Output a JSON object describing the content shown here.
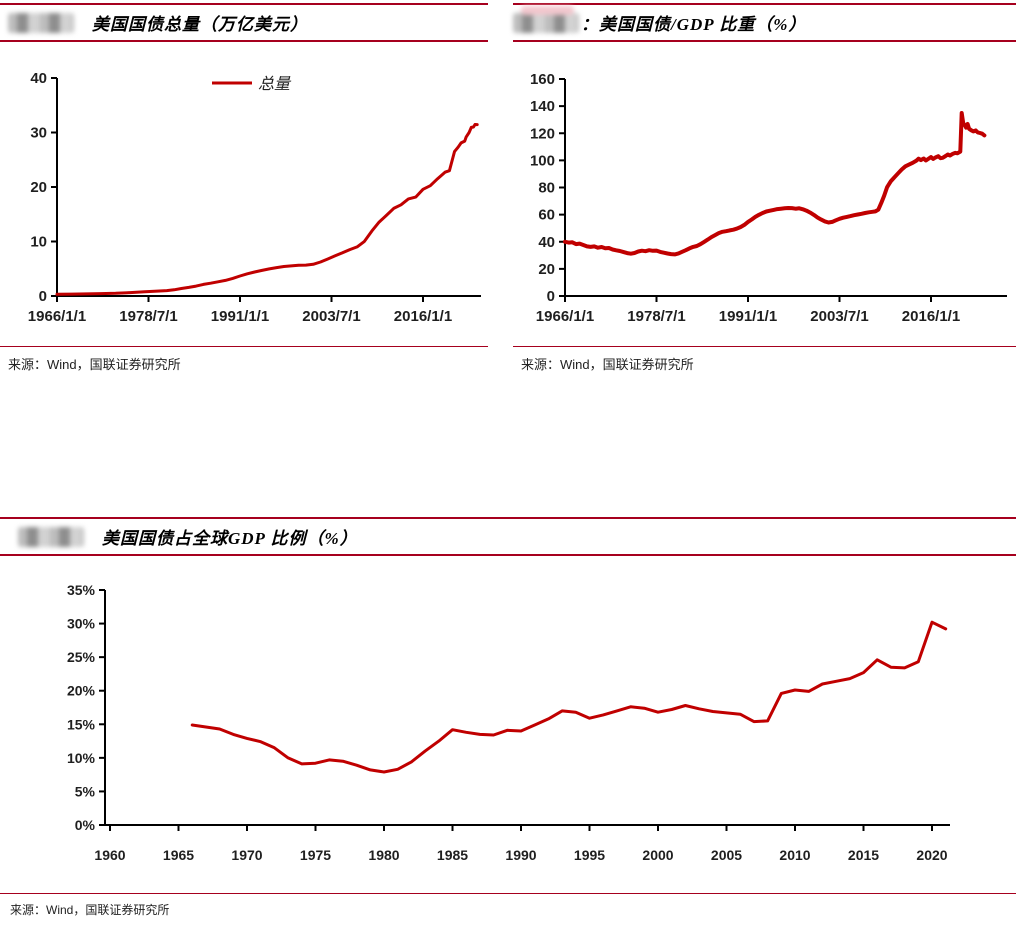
{
  "colors": {
    "rule": "#A6001E",
    "line": "#C00000",
    "axis": "#000000",
    "tick_label": "#1f1f1f",
    "legend_text": "#222222"
  },
  "chart_data": [
    {
      "type": "line",
      "title": "美国国债总量（万亿美元）",
      "source": "来源：Wind，国联证券研究所",
      "legend": [
        "总量"
      ],
      "legend_position": "top-center",
      "grid": false,
      "ylabel": "",
      "xlabel": "",
      "ylim": [
        0,
        40
      ],
      "ytick_values": [
        0,
        10,
        20,
        30,
        40
      ],
      "ytick_labels": [
        "0",
        "10",
        "20",
        "30",
        "40"
      ],
      "xtick_values": [
        1966,
        1978.5,
        1991,
        2003.5,
        2016
      ],
      "xtick_labels": [
        "1966/1/1",
        "1978/7/1",
        "1991/1/1",
        "2003/7/1",
        "2016/1/1"
      ],
      "series": [
        {
          "name": "总量",
          "color": "#C00000",
          "points": [
            [
              1966,
              0.32
            ],
            [
              1968,
              0.35
            ],
            [
              1970,
              0.38
            ],
            [
              1972,
              0.44
            ],
            [
              1974,
              0.49
            ],
            [
              1976,
              0.63
            ],
            [
              1978,
              0.78
            ],
            [
              1980,
              0.91
            ],
            [
              1981,
              1.0
            ],
            [
              1982,
              1.14
            ],
            [
              1983,
              1.38
            ],
            [
              1984,
              1.57
            ],
            [
              1985,
              1.82
            ],
            [
              1986,
              2.13
            ],
            [
              1987,
              2.35
            ],
            [
              1988,
              2.6
            ],
            [
              1989,
              2.87
            ],
            [
              1990,
              3.23
            ],
            [
              1991,
              3.67
            ],
            [
              1992,
              4.07
            ],
            [
              1993,
              4.41
            ],
            [
              1994,
              4.69
            ],
            [
              1995,
              4.97
            ],
            [
              1996,
              5.22
            ],
            [
              1997,
              5.41
            ],
            [
              1998,
              5.53
            ],
            [
              1999,
              5.66
            ],
            [
              2000,
              5.67
            ],
            [
              2001,
              5.81
            ],
            [
              2002,
              6.23
            ],
            [
              2003,
              6.78
            ],
            [
              2004,
              7.38
            ],
            [
              2005,
              7.93
            ],
            [
              2006,
              8.51
            ],
            [
              2007,
              9.01
            ],
            [
              2008,
              10.02
            ],
            [
              2009,
              11.91
            ],
            [
              2010,
              13.56
            ],
            [
              2011,
              14.79
            ],
            [
              2012,
              16.07
            ],
            [
              2013,
              16.74
            ],
            [
              2014,
              17.82
            ],
            [
              2015,
              18.15
            ],
            [
              2016,
              19.57
            ],
            [
              2017,
              20.24
            ],
            [
              2018,
              21.52
            ],
            [
              2019,
              22.72
            ],
            [
              2019.6,
              23.0
            ],
            [
              2020.3,
              26.5
            ],
            [
              2020.8,
              27.3
            ],
            [
              2021.2,
              28.1
            ],
            [
              2021.7,
              28.43
            ],
            [
              2021.9,
              29.2
            ],
            [
              2022.3,
              30.0
            ],
            [
              2022.6,
              30.93
            ],
            [
              2022.9,
              31.0
            ],
            [
              2023.1,
              31.46
            ],
            [
              2023.4,
              31.45
            ]
          ]
        }
      ]
    },
    {
      "type": "line",
      "title": "：美国国债/GDP 比重（%）",
      "source": "来源：Wind，国联证券研究所",
      "legend": [],
      "grid": false,
      "ylabel": "",
      "xlabel": "",
      "ylim": [
        0,
        160
      ],
      "ytick_values": [
        0,
        20,
        40,
        60,
        80,
        100,
        120,
        140,
        160
      ],
      "ytick_labels": [
        "0",
        "20",
        "40",
        "60",
        "80",
        "100",
        "120",
        "140",
        "160"
      ],
      "xtick_values": [
        1966,
        1978.5,
        1991,
        2003.5,
        2016
      ],
      "xtick_labels": [
        "1966/1/1",
        "1978/7/1",
        "1991/1/1",
        "2003/7/1",
        "2016/1/1"
      ],
      "series": [
        {
          "name": "美国国债/GDP",
          "color": "#C00000",
          "points": [
            [
              1966,
              40
            ],
            [
              1966.5,
              39.4
            ],
            [
              1967,
              39.6
            ],
            [
              1967.5,
              38.3
            ],
            [
              1968,
              38.6
            ],
            [
              1968.5,
              37.6
            ],
            [
              1969,
              36.6
            ],
            [
              1969.5,
              36.2
            ],
            [
              1970,
              36.6
            ],
            [
              1970.5,
              35.6
            ],
            [
              1971,
              36.1
            ],
            [
              1971.5,
              35.2
            ],
            [
              1972,
              35.4
            ],
            [
              1972.5,
              34.3
            ],
            [
              1973,
              33.7
            ],
            [
              1973.5,
              33.2
            ],
            [
              1974,
              32.4
            ],
            [
              1974.5,
              31.6
            ],
            [
              1975,
              31.2
            ],
            [
              1975.5,
              31.7
            ],
            [
              1976,
              32.8
            ],
            [
              1976.5,
              33.4
            ],
            [
              1977,
              33.0
            ],
            [
              1977.5,
              33.8
            ],
            [
              1978,
              33.3
            ],
            [
              1978.5,
              33.5
            ],
            [
              1979,
              32.5
            ],
            [
              1979.5,
              31.9
            ],
            [
              1980,
              31.3
            ],
            [
              1980.5,
              30.9
            ],
            [
              1981,
              30.7
            ],
            [
              1981.5,
              31.4
            ],
            [
              1982,
              32.6
            ],
            [
              1982.5,
              33.8
            ],
            [
              1983,
              35.1
            ],
            [
              1983.5,
              36.2
            ],
            [
              1984,
              36.9
            ],
            [
              1984.5,
              38.2
            ],
            [
              1985,
              39.9
            ],
            [
              1985.5,
              41.6
            ],
            [
              1986,
              43.4
            ],
            [
              1986.5,
              44.9
            ],
            [
              1987,
              46.4
            ],
            [
              1987.5,
              47.3
            ],
            [
              1988,
              47.8
            ],
            [
              1988.5,
              48.4
            ],
            [
              1989,
              48.9
            ],
            [
              1989.5,
              49.7
            ],
            [
              1990,
              50.9
            ],
            [
              1990.5,
              52.4
            ],
            [
              1991,
              54.6
            ],
            [
              1991.5,
              56.4
            ],
            [
              1992,
              58.3
            ],
            [
              1992.5,
              59.9
            ],
            [
              1993,
              61.2
            ],
            [
              1993.5,
              62.3
            ],
            [
              1994,
              62.9
            ],
            [
              1994.5,
              63.5
            ],
            [
              1995,
              64.1
            ],
            [
              1995.5,
              64.4
            ],
            [
              1996,
              64.7
            ],
            [
              1996.5,
              64.9
            ],
            [
              1997,
              64.8
            ],
            [
              1997.5,
              64.4
            ],
            [
              1998,
              64.7
            ],
            [
              1998.5,
              63.9
            ],
            [
              1999,
              62.9
            ],
            [
              1999.5,
              61.5
            ],
            [
              2000,
              59.8
            ],
            [
              2000.5,
              57.9
            ],
            [
              2001,
              56.3
            ],
            [
              2001.5,
              55.0
            ],
            [
              2002,
              54.2
            ],
            [
              2002.5,
              54.6
            ],
            [
              2003,
              55.8
            ],
            [
              2003.5,
              56.9
            ],
            [
              2004,
              57.7
            ],
            [
              2004.5,
              58.3
            ],
            [
              2005,
              58.9
            ],
            [
              2005.5,
              59.6
            ],
            [
              2006,
              60.1
            ],
            [
              2006.5,
              60.6
            ],
            [
              2007,
              61.2
            ],
            [
              2007.5,
              61.7
            ],
            [
              2008,
              62.1
            ],
            [
              2008.4,
              62.4
            ],
            [
              2008.8,
              63.6
            ],
            [
              2009.2,
              68.5
            ],
            [
              2009.6,
              74.0
            ],
            [
              2010,
              80.2
            ],
            [
              2010.5,
              84.5
            ],
            [
              2011,
              87.5
            ],
            [
              2011.5,
              90.5
            ],
            [
              2012,
              93.3
            ],
            [
              2012.5,
              95.6
            ],
            [
              2013,
              96.9
            ],
            [
              2013.5,
              98.2
            ],
            [
              2014,
              99.8
            ],
            [
              2014.3,
              101.2
            ],
            [
              2014.6,
              100.2
            ],
            [
              2015,
              101.4
            ],
            [
              2015.3,
              99.9
            ],
            [
              2015.6,
              101.0
            ],
            [
              2016,
              102.4
            ],
            [
              2016.3,
              101.1
            ],
            [
              2016.6,
              102.1
            ],
            [
              2017,
              103.1
            ],
            [
              2017.3,
              101.6
            ],
            [
              2017.6,
              101.9
            ],
            [
              2018,
              103.2
            ],
            [
              2018.3,
              104.3
            ],
            [
              2018.6,
              103.6
            ],
            [
              2019,
              104.9
            ],
            [
              2019.3,
              105.5
            ],
            [
              2019.6,
              105.2
            ],
            [
              2020,
              106.5
            ],
            [
              2020.2,
              134.9
            ],
            [
              2020.4,
              127.5
            ],
            [
              2020.6,
              126.0
            ],
            [
              2020.8,
              124.2
            ],
            [
              2021,
              126.8
            ],
            [
              2021.2,
              123.3
            ],
            [
              2021.5,
              122.2
            ],
            [
              2021.8,
              121.4
            ],
            [
              2022.1,
              122.1
            ],
            [
              2022.4,
              120.6
            ],
            [
              2022.7,
              120.2
            ],
            [
              2023,
              119.7
            ],
            [
              2023.3,
              118.4
            ]
          ]
        }
      ]
    },
    {
      "type": "line",
      "title": "美国国债占全球GDP 比例（%）",
      "source": "来源：Wind，国联证券研究所",
      "legend": [],
      "grid": false,
      "ylabel": "",
      "xlabel": "",
      "ylim": [
        0,
        35
      ],
      "ytick_values": [
        0,
        5,
        10,
        15,
        20,
        25,
        30,
        35
      ],
      "ytick_labels": [
        "0%",
        "5%",
        "10%",
        "15%",
        "20%",
        "25%",
        "30%",
        "35%"
      ],
      "xtick_values": [
        1960,
        1965,
        1970,
        1975,
        1980,
        1985,
        1990,
        1995,
        2000,
        2005,
        2010,
        2015,
        2020
      ],
      "xtick_labels": [
        "1960",
        "1965",
        "1970",
        "1975",
        "1980",
        "1985",
        "1990",
        "1995",
        "2000",
        "2005",
        "2010",
        "2015",
        "2020"
      ],
      "series": [
        {
          "name": "美国国债占全球GDP比例",
          "color": "#C00000",
          "points": [
            [
              1966,
              14.9
            ],
            [
              1967,
              14.6
            ],
            [
              1968,
              14.3
            ],
            [
              1969,
              13.5
            ],
            [
              1970,
              12.9
            ],
            [
              1971,
              12.4
            ],
            [
              1972,
              11.5
            ],
            [
              1973,
              10.0
            ],
            [
              1974,
              9.1
            ],
            [
              1975,
              9.2
            ],
            [
              1976,
              9.7
            ],
            [
              1977,
              9.5
            ],
            [
              1978,
              8.9
            ],
            [
              1979,
              8.2
            ],
            [
              1980,
              7.9
            ],
            [
              1981,
              8.3
            ],
            [
              1982,
              9.4
            ],
            [
              1983,
              11.0
            ],
            [
              1984,
              12.5
            ],
            [
              1985,
              14.2
            ],
            [
              1986,
              13.8
            ],
            [
              1987,
              13.5
            ],
            [
              1988,
              13.4
            ],
            [
              1989,
              14.1
            ],
            [
              1990,
              14.0
            ],
            [
              1991,
              14.9
            ],
            [
              1992,
              15.8
            ],
            [
              1993,
              17.0
            ],
            [
              1994,
              16.8
            ],
            [
              1995,
              15.9
            ],
            [
              1996,
              16.4
            ],
            [
              1997,
              17.0
            ],
            [
              1998,
              17.6
            ],
            [
              1999,
              17.4
            ],
            [
              2000,
              16.8
            ],
            [
              2001,
              17.2
            ],
            [
              2002,
              17.8
            ],
            [
              2003,
              17.3
            ],
            [
              2004,
              16.9
            ],
            [
              2005,
              16.7
            ],
            [
              2006,
              16.5
            ],
            [
              2007,
              15.4
            ],
            [
              2008,
              15.5
            ],
            [
              2009,
              19.6
            ],
            [
              2010,
              20.1
            ],
            [
              2011,
              19.9
            ],
            [
              2012,
              21.0
            ],
            [
              2013,
              21.4
            ],
            [
              2014,
              21.8
            ],
            [
              2015,
              22.7
            ],
            [
              2016,
              24.6
            ],
            [
              2017,
              23.5
            ],
            [
              2018,
              23.4
            ],
            [
              2019,
              24.3
            ],
            [
              2020,
              30.2
            ],
            [
              2021,
              29.2
            ]
          ]
        }
      ]
    }
  ]
}
